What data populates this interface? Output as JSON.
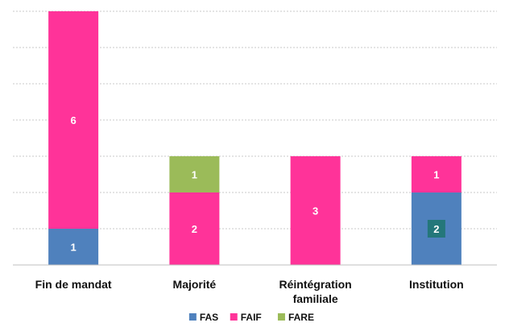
{
  "chart_data": {
    "type": "bar",
    "stacked": true,
    "title": "",
    "xlabel": "",
    "ylabel": "",
    "categories": [
      "Fin de mandat",
      "Majorité",
      "Réintégration familiale",
      "Institution"
    ],
    "category_lines": [
      [
        "Fin de mandat"
      ],
      [
        "Majorité"
      ],
      [
        "Réintégration",
        "familiale"
      ],
      [
        "Institution"
      ]
    ],
    "series": [
      {
        "name": "FAS",
        "color": "#4f81bd",
        "values": [
          1,
          0,
          0,
          2
        ]
      },
      {
        "name": "FAIF",
        "color": "#ff3399",
        "values": [
          6,
          2,
          3,
          1
        ]
      },
      {
        "name": "FARE",
        "color": "#9bbb59",
        "values": [
          0,
          1,
          0,
          0
        ]
      }
    ],
    "ylim": [
      0,
      7
    ],
    "y_gridline_step": 1,
    "y_tick_labels_shown": false,
    "grid": true,
    "legend_position": "bottom"
  }
}
